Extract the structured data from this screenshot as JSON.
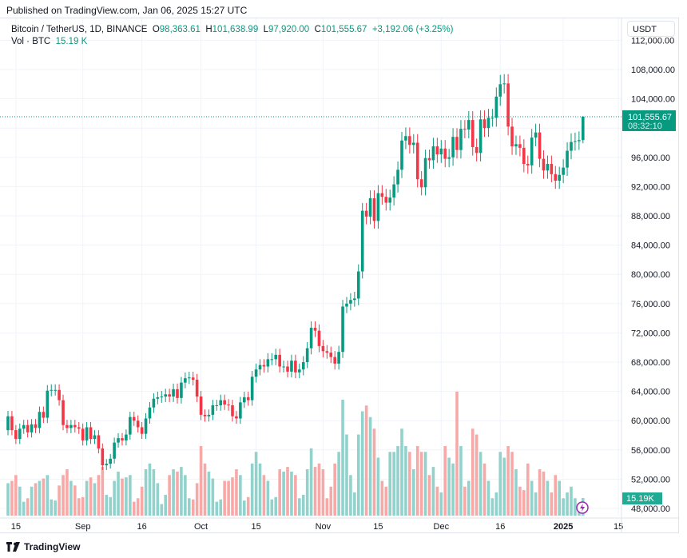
{
  "published": "Published on TradingView.com, Jan 06, 2025 15:27 UTC",
  "legend": {
    "symbol": "Bitcoin / TetherUS, 1D, BINANCE",
    "open_label": "O",
    "open": "98,363.61",
    "high_label": "H",
    "high": "101,638.99",
    "low_label": "L",
    "low": "97,920.00",
    "close_label": "C",
    "close": "101,555.67",
    "change": "+3,192.06 (+3.25%)",
    "vol_label": "Vol · BTC",
    "vol": "15.19 K"
  },
  "currency": "USDT",
  "last_price_label": "101,555.67",
  "countdown": "08:32:10",
  "volume_label": "15.19K",
  "brand": "TradingView",
  "colors": {
    "up": "#089981",
    "down": "#f23645",
    "vol_up": "#92d2cc",
    "vol_down": "#f7a9a7",
    "grid": "#f0f3fa"
  },
  "chart_data": {
    "type": "candlestick",
    "first_date": "2024-08-13",
    "interval": "1D",
    "first_open": 58.7,
    "units": "thousand USDT",
    "close": [
      60.6,
      58.7,
      57.5,
      58.9,
      59.4,
      58.4,
      59.5,
      59.0,
      61.2,
      60.4,
      64.1,
      64.2,
      64.2,
      62.8,
      59.4,
      59.0,
      59.4,
      59.1,
      58.9,
      57.3,
      59.1,
      57.5,
      58.0,
      56.2,
      53.9,
      54.1,
      54.8,
      57.0,
      57.6,
      57.3,
      58.1,
      60.5,
      60.0,
      59.1,
      58.2,
      60.3,
      61.8,
      63.0,
      63.2,
      63.3,
      63.6,
      63.3,
      64.3,
      63.1,
      65.2,
      65.8,
      65.9,
      65.6,
      63.3,
      60.8,
      60.6,
      60.8,
      62.1,
      62.1,
      62.8,
      62.2,
      62.1,
      60.6,
      60.3,
      62.5,
      63.2,
      62.8,
      66.0,
      67.0,
      67.6,
      67.4,
      68.4,
      68.4,
      69.0,
      67.4,
      67.4,
      66.7,
      68.2,
      66.6,
      67.0,
      68.0,
      69.9,
      72.7,
      72.3,
      70.2,
      69.5,
      69.3,
      68.7,
      67.8,
      69.4,
      75.6,
      76.0,
      76.5,
      76.7,
      80.4,
      88.7,
      87.9,
      90.4,
      87.3,
      91.1,
      90.6,
      89.8,
      90.5,
      92.3,
      94.3,
      98.3,
      98.9,
      97.7,
      98.0,
      93.0,
      91.9,
      95.9,
      95.6,
      97.5,
      96.4,
      97.2,
      95.8,
      96.0,
      98.8,
      97.0,
      99.9,
      99.8,
      101.1,
      97.4,
      96.6,
      101.2,
      100.0,
      101.4,
      101.4,
      104.3,
      106.0,
      106.1,
      100.2,
      97.5,
      97.8,
      97.3,
      95.1,
      94.9,
      98.7,
      99.4,
      95.8,
      94.2,
      95.1,
      93.7,
      92.8,
      93.6,
      94.6,
      96.9,
      98.1,
      98.2,
      98.36,
      101.56
    ],
    "last_candle": {
      "open": 98363.61,
      "high": 101638.99,
      "low": 97920.0,
      "close": 101555.67
    },
    "volume_k": [
      28,
      30,
      35,
      25,
      12,
      15,
      25,
      28,
      30,
      32,
      35,
      14,
      13,
      26,
      35,
      40,
      30,
      26,
      15,
      16,
      30,
      33,
      28,
      35,
      42,
      18,
      16,
      30,
      38,
      32,
      33,
      35,
      12,
      15,
      25,
      40,
      45,
      40,
      28,
      10,
      18,
      35,
      40,
      38,
      42,
      35,
      15,
      14,
      28,
      60,
      45,
      38,
      32,
      12,
      14,
      30,
      30,
      33,
      40,
      35,
      13,
      16,
      45,
      55,
      45,
      35,
      30,
      14,
      16,
      40,
      38,
      42,
      38,
      35,
      15,
      18,
      40,
      58,
      42,
      45,
      40,
      15,
      25,
      45,
      55,
      100,
      70,
      35,
      20,
      70,
      90,
      95,
      85,
      75,
      50,
      30,
      25,
      55,
      55,
      60,
      75,
      60,
      55,
      40,
      60,
      55,
      55,
      35,
      42,
      25,
      20,
      60,
      50,
      45,
      107,
      60,
      25,
      30,
      75,
      70,
      55,
      45,
      30,
      15,
      20,
      55,
      50,
      60,
      55,
      40,
      25,
      22,
      45,
      30,
      20,
      40,
      38,
      30,
      20,
      35,
      30,
      15,
      20,
      25,
      15,
      10,
      15.19
    ],
    "y_ticks": [
      "112,000.00",
      "108,000.00",
      "104,000.00",
      "100,000.00",
      "96,000.00",
      "92,000.00",
      "88,000.00",
      "84,000.00",
      "80,000.00",
      "76,000.00",
      "72,000.00",
      "68,000.00",
      "64,000.00",
      "60,000.00",
      "56,000.00",
      "52,000.00",
      "48,000.00"
    ],
    "x_ticks": [
      {
        "label": "15",
        "date": "2024-08-15"
      },
      {
        "label": "Sep",
        "date": "2024-09-01"
      },
      {
        "label": "16",
        "date": "2024-09-16"
      },
      {
        "label": "Oct",
        "date": "2024-10-01"
      },
      {
        "label": "15",
        "date": "2024-10-15"
      },
      {
        "label": "Nov",
        "date": "2024-11-01"
      },
      {
        "label": "15",
        "date": "2024-11-15"
      },
      {
        "label": "Dec",
        "date": "2024-12-01"
      },
      {
        "label": "16",
        "date": "2024-12-16"
      },
      {
        "label": "2025",
        "date": "2025-01-01",
        "bold": true
      },
      {
        "label": "15",
        "date": "2025-01-15"
      }
    ],
    "ylim": [
      47000,
      113000
    ],
    "grid": true
  }
}
